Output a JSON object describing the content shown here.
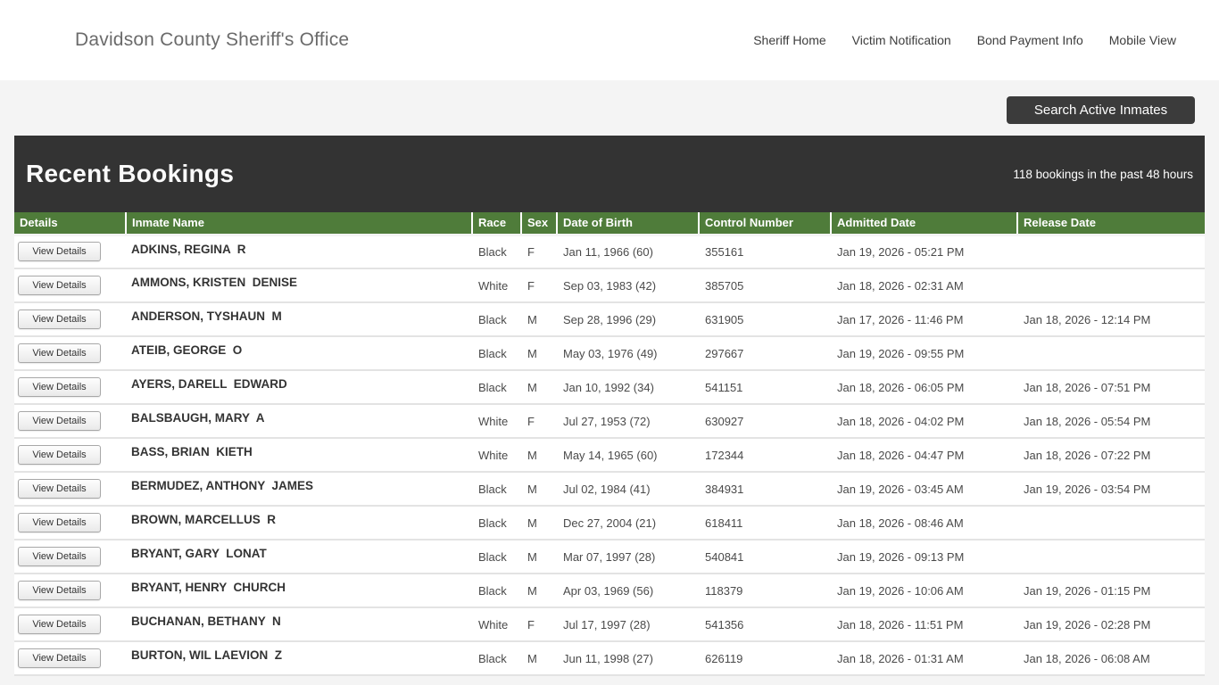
{
  "header": {
    "title": "Davidson County Sheriff's Office",
    "nav": [
      {
        "label": "Sheriff Home"
      },
      {
        "label": "Victim Notification"
      },
      {
        "label": "Bond Payment Info"
      },
      {
        "label": "Mobile View"
      }
    ]
  },
  "toolbar": {
    "search_button_label": "Search Active Inmates"
  },
  "bookings": {
    "title": "Recent Bookings",
    "count_note": "118 bookings in the past 48 hours"
  },
  "table": {
    "columns": [
      "Details",
      "Inmate Name",
      "Race",
      "Sex",
      "Date of Birth",
      "Control Number",
      "Admitted Date",
      "Release Date"
    ],
    "view_details_label": "View Details",
    "rows": [
      {
        "name": "ADKINS, REGINA  R",
        "race": "Black",
        "sex": "F",
        "dob": "Jan 11, 1966 (60)",
        "control_number": "355161",
        "admitted": "Jan 19, 2026 - 05:21 PM",
        "released": ""
      },
      {
        "name": "AMMONS, KRISTEN  DENISE",
        "race": "White",
        "sex": "F",
        "dob": "Sep 03, 1983 (42)",
        "control_number": "385705",
        "admitted": "Jan 18, 2026 - 02:31 AM",
        "released": ""
      },
      {
        "name": "ANDERSON, TYSHAUN  M",
        "race": "Black",
        "sex": "M",
        "dob": "Sep 28, 1996 (29)",
        "control_number": "631905",
        "admitted": "Jan 17, 2026 - 11:46 PM",
        "released": "Jan 18, 2026 - 12:14 PM"
      },
      {
        "name": "ATEIB, GEORGE  O",
        "race": "Black",
        "sex": "M",
        "dob": "May 03, 1976 (49)",
        "control_number": "297667",
        "admitted": "Jan 19, 2026 - 09:55 PM",
        "released": ""
      },
      {
        "name": "AYERS, DARELL  EDWARD",
        "race": "Black",
        "sex": "M",
        "dob": "Jan 10, 1992 (34)",
        "control_number": "541151",
        "admitted": "Jan 18, 2026 - 06:05 PM",
        "released": "Jan 18, 2026 - 07:51 PM"
      },
      {
        "name": "BALSBAUGH, MARY  A",
        "race": "White",
        "sex": "F",
        "dob": "Jul 27, 1953 (72)",
        "control_number": "630927",
        "admitted": "Jan 18, 2026 - 04:02 PM",
        "released": "Jan 18, 2026 - 05:54 PM"
      },
      {
        "name": "BASS, BRIAN  KIETH",
        "race": "White",
        "sex": "M",
        "dob": "May 14, 1965 (60)",
        "control_number": "172344",
        "admitted": "Jan 18, 2026 - 04:47 PM",
        "released": "Jan 18, 2026 - 07:22 PM"
      },
      {
        "name": "BERMUDEZ, ANTHONY  JAMES",
        "race": "Black",
        "sex": "M",
        "dob": "Jul 02, 1984 (41)",
        "control_number": "384931",
        "admitted": "Jan 19, 2026 - 03:45 AM",
        "released": "Jan 19, 2026 - 03:54 PM"
      },
      {
        "name": "BROWN, MARCELLUS  R",
        "race": "Black",
        "sex": "M",
        "dob": "Dec 27, 2004 (21)",
        "control_number": "618411",
        "admitted": "Jan 18, 2026 - 08:46 AM",
        "released": ""
      },
      {
        "name": "BRYANT, GARY  LONAT",
        "race": "Black",
        "sex": "M",
        "dob": "Mar 07, 1997 (28)",
        "control_number": "540841",
        "admitted": "Jan 19, 2026 - 09:13 PM",
        "released": ""
      },
      {
        "name": "BRYANT, HENRY  CHURCH",
        "race": "Black",
        "sex": "M",
        "dob": "Apr 03, 1969 (56)",
        "control_number": "118379",
        "admitted": "Jan 19, 2026 - 10:06 AM",
        "released": "Jan 19, 2026 - 01:15 PM"
      },
      {
        "name": "BUCHANAN, BETHANY  N",
        "race": "White",
        "sex": "F",
        "dob": "Jul 17, 1997 (28)",
        "control_number": "541356",
        "admitted": "Jan 18, 2026 - 11:51 PM",
        "released": "Jan 19, 2026 - 02:28 PM"
      },
      {
        "name": "BURTON, WIL LAEVION  Z",
        "race": "Black",
        "sex": "M",
        "dob": "Jun 11, 1998 (27)",
        "control_number": "626119",
        "admitted": "Jan 18, 2026 - 01:31 AM",
        "released": "Jan 18, 2026 - 06:08 AM"
      }
    ]
  },
  "colors": {
    "table_header_green": "#4F7C3A",
    "dark_bar": "#333333",
    "page_background": "#f4f4f4",
    "search_button_dark": "#3b3b3b"
  }
}
